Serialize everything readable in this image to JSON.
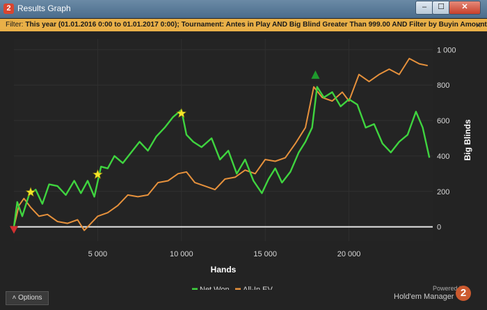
{
  "window": {
    "title": "Results Graph",
    "app_icon": "2",
    "buttons": {
      "minimize": "–",
      "maximize": "☐",
      "close": "✕"
    }
  },
  "filter": {
    "label": "Filter:",
    "text": "This year (01.01.2016 0:00 to 01.01.2017 0:00); Tournament: Antes in Play  AND Big Blind Greater Than 999.00 AND Filter by Buyin Amount",
    "close": "✕"
  },
  "options_button": {
    "label": "Options",
    "icon": "chevron-up-icon"
  },
  "branding": {
    "powered": "Powered by",
    "name": "Hold'em Manager",
    "logo": "2"
  },
  "colors": {
    "background": "#232323",
    "net_won": "#3fd43f",
    "all_in_ev": "#e6913c",
    "zero_line": "#e6e6e6",
    "filter_bar": "#e9b048"
  },
  "chart_data": {
    "type": "line",
    "xlabel": "Hands",
    "ylabel": "Big Blinds",
    "x_ticks": [
      5000,
      10000,
      15000,
      20000
    ],
    "x_tick_labels": [
      "5 000",
      "10 000",
      "15 000",
      "20 000"
    ],
    "y_ticks": [
      0,
      200,
      400,
      600,
      800,
      1000
    ],
    "y_tick_labels": [
      "0",
      "200",
      "400",
      "600",
      "800",
      "1 000"
    ],
    "xlim": [
      0,
      25000
    ],
    "ylim": [
      -80,
      1060
    ],
    "grid": true,
    "legend": {
      "position": "bottom",
      "entries": [
        "Net Won",
        "All-In EV"
      ]
    },
    "series": [
      {
        "name": "Net Won",
        "x": [
          0,
          200,
          500,
          900,
          1300,
          1700,
          2100,
          2600,
          3100,
          3600,
          4000,
          4400,
          4800,
          5200,
          5600,
          6000,
          6500,
          7000,
          7500,
          8000,
          8500,
          9000,
          9500,
          10000,
          10300,
          10700,
          11200,
          11800,
          12300,
          12800,
          13300,
          13800,
          14300,
          14800,
          15200,
          15600,
          16000,
          16500,
          17000,
          17400,
          17800,
          18100,
          18500,
          19000,
          19500,
          20000,
          20500,
          21000,
          21500,
          22000,
          22500,
          23000,
          23500,
          24000,
          24400,
          24800
        ],
        "y": [
          0,
          140,
          60,
          180,
          210,
          130,
          240,
          230,
          180,
          260,
          190,
          260,
          170,
          340,
          330,
          400,
          360,
          420,
          480,
          430,
          510,
          560,
          620,
          660,
          520,
          480,
          450,
          500,
          380,
          430,
          300,
          380,
          260,
          190,
          270,
          330,
          250,
          310,
          420,
          480,
          560,
          790,
          730,
          760,
          680,
          720,
          690,
          560,
          580,
          470,
          420,
          480,
          520,
          650,
          560,
          390
        ]
      },
      {
        "name": "All-In EV",
        "x": [
          0,
          300,
          600,
          1000,
          1500,
          2000,
          2600,
          3200,
          3800,
          4200,
          4600,
          5000,
          5600,
          6200,
          6800,
          7400,
          8000,
          8600,
          9200,
          9800,
          10300,
          10800,
          11400,
          12000,
          12600,
          13200,
          13800,
          14400,
          15000,
          15600,
          16200,
          16800,
          17400,
          17900,
          18400,
          19000,
          19600,
          20000,
          20600,
          21200,
          21800,
          22400,
          23000,
          23600,
          24200,
          24700
        ],
        "y": [
          0,
          120,
          160,
          110,
          60,
          70,
          30,
          20,
          40,
          -20,
          20,
          60,
          80,
          120,
          180,
          170,
          180,
          250,
          260,
          300,
          310,
          250,
          230,
          210,
          270,
          280,
          320,
          300,
          380,
          370,
          390,
          470,
          560,
          790,
          730,
          710,
          760,
          710,
          860,
          820,
          860,
          890,
          860,
          950,
          920,
          910
        ]
      }
    ],
    "markers": [
      {
        "type": "star",
        "x": 1000,
        "y": 195,
        "color": "#f5e52a"
      },
      {
        "type": "star",
        "x": 5000,
        "y": 295,
        "color": "#f5e52a"
      },
      {
        "type": "star",
        "x": 10000,
        "y": 640,
        "color": "#f5e52a"
      },
      {
        "type": "triangle-up",
        "x": 18000,
        "y": 855,
        "color": "#1f9a2d"
      },
      {
        "type": "triangle-down",
        "x": 0,
        "y": -15,
        "color": "#d23030"
      }
    ]
  }
}
